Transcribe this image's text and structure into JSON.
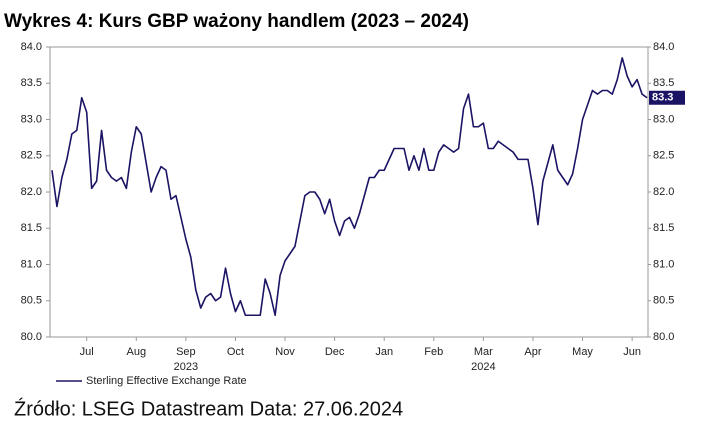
{
  "chart_data": {
    "type": "line",
    "title": "Wykres 4: Kurs GBP ważony handlem (2023 – 2024)",
    "source": "Źródło: LSEG Datastream Data: 27.06.2024",
    "x": [
      -0.2,
      -0.1,
      0,
      0.1,
      0.2,
      0.3,
      0.4,
      0.5,
      0.6,
      0.7,
      0.8,
      0.9,
      1,
      1.1,
      1.2,
      1.3,
      1.4,
      1.5,
      1.6,
      1.7,
      1.8,
      1.9,
      2,
      2.1,
      2.2,
      2.3,
      2.4,
      2.5,
      2.6,
      2.7,
      2.8,
      2.9,
      3,
      3.1,
      3.2,
      3.3,
      3.4,
      3.5,
      3.6,
      3.7,
      3.8,
      3.9,
      4,
      4.1,
      4.2,
      4.3,
      4.4,
      4.5,
      4.6,
      4.7,
      4.8,
      4.9,
      5,
      5.1,
      5.2,
      5.3,
      5.4,
      5.5,
      5.6,
      5.7,
      5.8,
      5.9,
      6,
      6.1,
      6.2,
      6.3,
      6.4,
      6.5,
      6.6,
      6.7,
      6.8,
      6.9,
      7,
      7.1,
      7.2,
      7.3,
      7.4,
      7.5,
      7.6,
      7.7,
      7.8,
      7.9,
      8,
      8.1,
      8.2,
      8.3,
      8.4,
      8.5,
      8.6,
      8.7,
      8.8,
      8.9,
      9,
      9.1,
      9.2,
      9.3,
      9.4,
      9.5,
      9.6,
      9.7,
      9.8,
      9.9,
      10,
      10.1,
      10.2,
      10.3,
      10.4,
      10.5,
      10.6,
      10.7,
      10.8,
      10.9,
      11,
      11.1,
      11.2,
      11.3,
      11.4,
      11.5,
      11.6,
      11.7,
      11.8
    ],
    "xlim": [
      -0.24,
      11.82
    ],
    "xticks": [
      {
        "value": 0.5,
        "label": "Jul"
      },
      {
        "value": 1.5,
        "label": "Aug"
      },
      {
        "value": 2.5,
        "label": "Sep"
      },
      {
        "value": 3.5,
        "label": "Oct"
      },
      {
        "value": 4.5,
        "label": "Nov"
      },
      {
        "value": 5.5,
        "label": "Dec"
      },
      {
        "value": 6.5,
        "label": "Jan"
      },
      {
        "value": 7.5,
        "label": "Feb"
      },
      {
        "value": 8.5,
        "label": "Mar"
      },
      {
        "value": 9.5,
        "label": "Apr"
      },
      {
        "value": 10.5,
        "label": "May"
      },
      {
        "value": 11.5,
        "label": "Jun"
      }
    ],
    "year_labels": [
      {
        "value": 2.5,
        "label": "2023"
      },
      {
        "value": 8.5,
        "label": "2024"
      }
    ],
    "series": [
      {
        "name": "Sterling Effective Exchange Rate",
        "color": "#1b1464",
        "values": [
          82.3,
          81.8,
          82.2,
          82.45,
          82.8,
          82.85,
          83.3,
          83.1,
          82.05,
          82.15,
          82.85,
          82.3,
          82.2,
          82.15,
          82.2,
          82.05,
          82.55,
          82.9,
          82.8,
          82.4,
          82.0,
          82.2,
          82.35,
          82.3,
          81.9,
          81.95,
          81.65,
          81.35,
          81.1,
          80.65,
          80.4,
          80.55,
          80.6,
          80.5,
          80.55,
          80.95,
          80.6,
          80.35,
          80.5,
          80.3,
          80.3,
          80.3,
          80.3,
          80.8,
          80.6,
          80.3,
          80.85,
          81.05,
          81.15,
          81.25,
          81.6,
          81.95,
          82.0,
          82.0,
          81.9,
          81.7,
          81.9,
          81.6,
          81.4,
          81.6,
          81.65,
          81.5,
          81.7,
          81.95,
          82.2,
          82.2,
          82.3,
          82.3,
          82.45,
          82.6,
          82.6,
          82.6,
          82.3,
          82.5,
          82.3,
          82.6,
          82.3,
          82.3,
          82.55,
          82.65,
          82.6,
          82.55,
          82.6,
          83.15,
          83.35,
          82.9,
          82.9,
          82.95,
          82.6,
          82.6,
          82.7,
          82.65,
          82.6,
          82.55,
          82.45,
          82.45,
          82.45,
          82.05,
          81.55,
          82.15,
          82.4,
          82.65,
          82.3,
          82.2,
          82.1,
          82.25,
          82.6,
          83.0,
          83.2,
          83.4,
          83.35,
          83.4,
          83.4,
          83.35,
          83.55,
          83.85,
          83.6,
          83.45,
          83.55,
          83.35,
          83.3
        ]
      }
    ],
    "ylim": [
      80,
      84
    ],
    "yticks": [
      {
        "value": 80,
        "label": "80.0"
      },
      {
        "value": 80.5,
        "label": "80.5"
      },
      {
        "value": 81,
        "label": "81.0"
      },
      {
        "value": 81.5,
        "label": "81.5"
      },
      {
        "value": 82,
        "label": "82.0"
      },
      {
        "value": 82.5,
        "label": "82.5"
      },
      {
        "value": 83,
        "label": "83.0"
      },
      {
        "value": 83.5,
        "label": "83.5"
      },
      {
        "value": 84,
        "label": "84.0"
      }
    ],
    "y2lim": [
      80,
      84
    ],
    "y2ticks": [
      {
        "value": 80,
        "label": "80.0"
      },
      {
        "value": 80.5,
        "label": "80.5"
      },
      {
        "value": 81,
        "label": "81.0"
      },
      {
        "value": 81.5,
        "label": "81.5"
      },
      {
        "value": 82,
        "label": "82.0"
      },
      {
        "value": 82.5,
        "label": "82.5"
      },
      {
        "value": 83,
        "label": "83.0"
      },
      {
        "value": 83.5,
        "label": "83.5"
      },
      {
        "value": 84,
        "label": "84.0"
      }
    ],
    "annotations": [
      {
        "text": "83.3",
        "y": 83.3
      }
    ],
    "grid": false
  }
}
